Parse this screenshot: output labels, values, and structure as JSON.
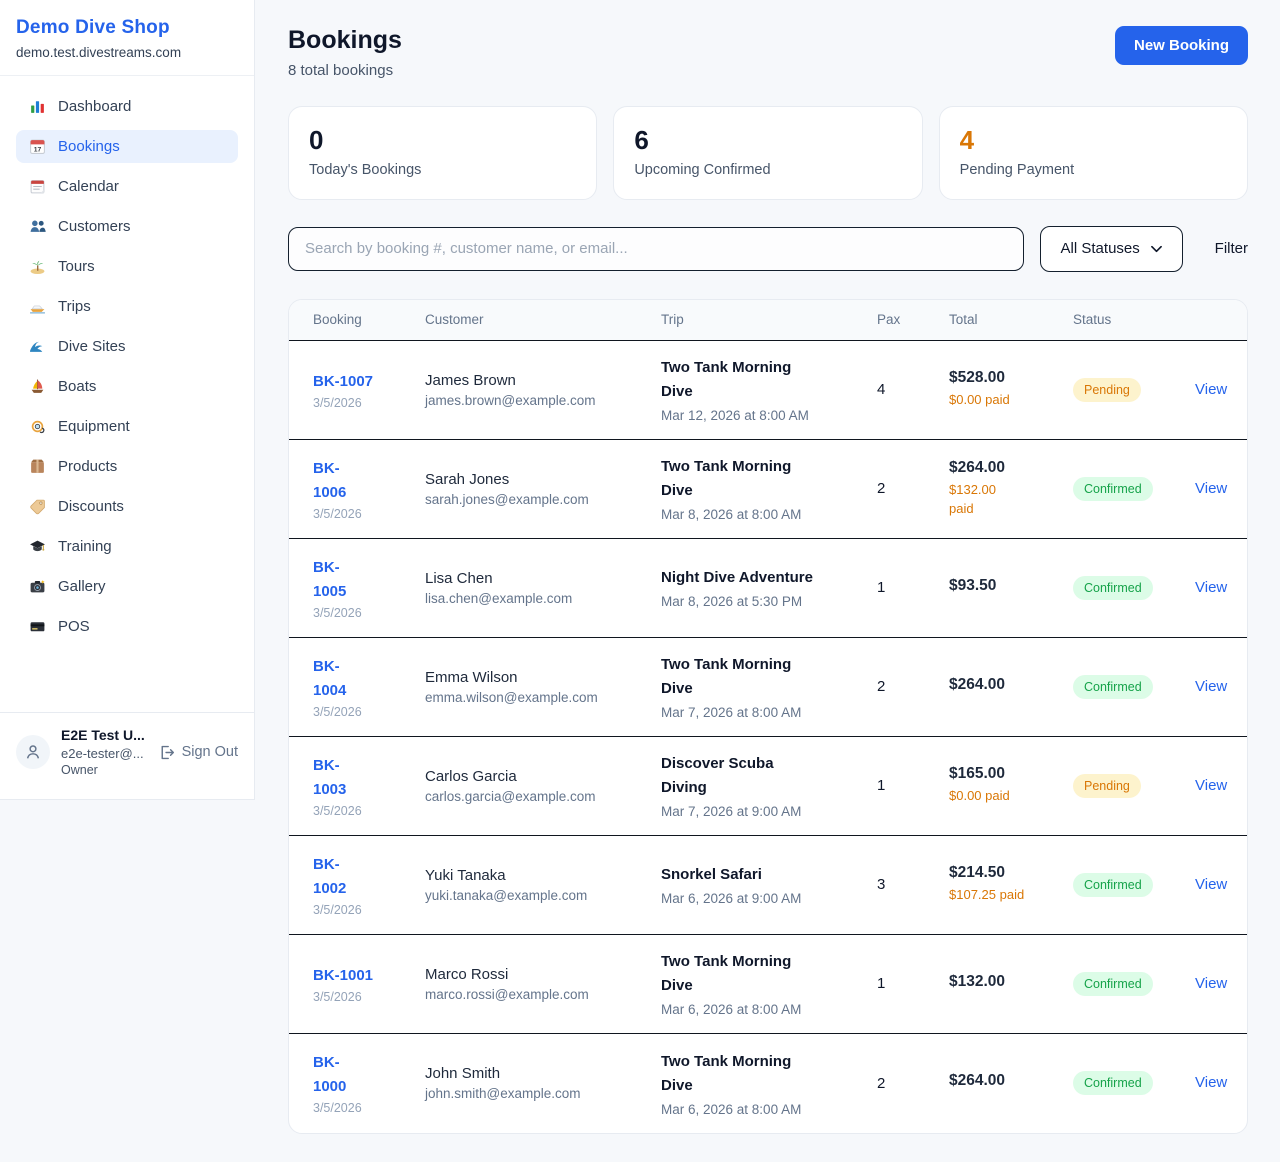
{
  "colors": {
    "accent": "#2563eb",
    "pending": "#d97706",
    "confirmed": "#16a34a",
    "stat_alert": "#d97706"
  },
  "sidebar": {
    "brand": {
      "name": "Demo Dive Shop",
      "domain": "demo.test.divestreams.com"
    },
    "nav": [
      {
        "icon": "bar-chart",
        "label": "Dashboard",
        "active": false
      },
      {
        "icon": "calendar-date",
        "label": "Bookings",
        "active": true
      },
      {
        "icon": "calendar",
        "label": "Calendar",
        "active": false
      },
      {
        "icon": "users",
        "label": "Customers",
        "active": false
      },
      {
        "icon": "island",
        "label": "Tours",
        "active": false
      },
      {
        "icon": "speedboat",
        "label": "Trips",
        "active": false
      },
      {
        "icon": "wave",
        "label": "Dive Sites",
        "active": false
      },
      {
        "icon": "sailboat",
        "label": "Boats",
        "active": false
      },
      {
        "icon": "dive-mask",
        "label": "Equipment",
        "active": false
      },
      {
        "icon": "package",
        "label": "Products",
        "active": false
      },
      {
        "icon": "tag",
        "label": "Discounts",
        "active": false
      },
      {
        "icon": "graduation-cap",
        "label": "Training",
        "active": false
      },
      {
        "icon": "camera",
        "label": "Gallery",
        "active": false
      },
      {
        "icon": "credit-card",
        "label": "POS",
        "active": false
      }
    ],
    "user": {
      "name": "E2E Test U...",
      "email": "e2e-tester@...",
      "role": "Owner",
      "sign_out_label": "Sign Out"
    }
  },
  "header": {
    "title": "Bookings",
    "subtitle": "8 total bookings",
    "new_booking_label": "New Booking"
  },
  "stats": [
    {
      "value": "0",
      "label": "Today's Bookings",
      "alert": false
    },
    {
      "value": "6",
      "label": "Upcoming Confirmed",
      "alert": false
    },
    {
      "value": "4",
      "label": "Pending Payment",
      "alert": true
    }
  ],
  "filters": {
    "search_placeholder": "Search by booking #, customer name, or email...",
    "status_selected": "All Statuses",
    "filter_label": "Filter"
  },
  "table": {
    "headers": {
      "booking": "Booking",
      "customer": "Customer",
      "trip": "Trip",
      "pax": "Pax",
      "total": "Total",
      "status": "Status"
    },
    "view_label": "View",
    "rows": [
      {
        "id_lines": [
          "BK-1007"
        ],
        "date": "3/5/2026",
        "customer_name": "James Brown",
        "customer_email": "james.brown@example.com",
        "trip_lines": [
          "Two Tank Morning",
          "Dive"
        ],
        "trip_datetime": "Mar 12, 2026 at 8:00 AM",
        "pax": "4",
        "total": "$528.00",
        "paid_lines": [
          "$0.00 paid"
        ],
        "status": "Pending",
        "status_type": "pending"
      },
      {
        "id_lines": [
          "BK-",
          "1006"
        ],
        "date": "3/5/2026",
        "customer_name": "Sarah Jones",
        "customer_email": "sarah.jones@example.com",
        "trip_lines": [
          "Two Tank Morning",
          "Dive"
        ],
        "trip_datetime": "Mar 8, 2026 at 8:00 AM",
        "pax": "2",
        "total": "$264.00",
        "paid_lines": [
          "$132.00",
          "paid"
        ],
        "status": "Confirmed",
        "status_type": "confirmed"
      },
      {
        "id_lines": [
          "BK-",
          "1005"
        ],
        "date": "3/5/2026",
        "customer_name": "Lisa Chen",
        "customer_email": "lisa.chen@example.com",
        "trip_lines": [
          "Night Dive Adventure"
        ],
        "trip_datetime": "Mar 8, 2026 at 5:30 PM",
        "pax": "1",
        "total": "$93.50",
        "paid_lines": [],
        "status": "Confirmed",
        "status_type": "confirmed"
      },
      {
        "id_lines": [
          "BK-",
          "1004"
        ],
        "date": "3/5/2026",
        "customer_name": "Emma Wilson",
        "customer_email": "emma.wilson@example.com",
        "trip_lines": [
          "Two Tank Morning",
          "Dive"
        ],
        "trip_datetime": "Mar 7, 2026 at 8:00 AM",
        "pax": "2",
        "total": "$264.00",
        "paid_lines": [],
        "status": "Confirmed",
        "status_type": "confirmed"
      },
      {
        "id_lines": [
          "BK-",
          "1003"
        ],
        "date": "3/5/2026",
        "customer_name": "Carlos Garcia",
        "customer_email": "carlos.garcia@example.com",
        "trip_lines": [
          "Discover Scuba",
          "Diving"
        ],
        "trip_datetime": "Mar 7, 2026 at 9:00 AM",
        "pax": "1",
        "total": "$165.00",
        "paid_lines": [
          "$0.00 paid"
        ],
        "status": "Pending",
        "status_type": "pending"
      },
      {
        "id_lines": [
          "BK-",
          "1002"
        ],
        "date": "3/5/2026",
        "customer_name": "Yuki Tanaka",
        "customer_email": "yuki.tanaka@example.com",
        "trip_lines": [
          "Snorkel Safari"
        ],
        "trip_datetime": "Mar 6, 2026 at 9:00 AM",
        "pax": "3",
        "total": "$214.50",
        "paid_lines": [
          "$107.25 paid"
        ],
        "status": "Confirmed",
        "status_type": "confirmed"
      },
      {
        "id_lines": [
          "BK-1001"
        ],
        "date": "3/5/2026",
        "customer_name": "Marco Rossi",
        "customer_email": "marco.rossi@example.com",
        "trip_lines": [
          "Two Tank Morning",
          "Dive"
        ],
        "trip_datetime": "Mar 6, 2026 at 8:00 AM",
        "pax": "1",
        "total": "$132.00",
        "paid_lines": [],
        "status": "Confirmed",
        "status_type": "confirmed"
      },
      {
        "id_lines": [
          "BK-",
          "1000"
        ],
        "date": "3/5/2026",
        "customer_name": "John Smith",
        "customer_email": "john.smith@example.com",
        "trip_lines": [
          "Two Tank Morning",
          "Dive"
        ],
        "trip_datetime": "Mar 6, 2026 at 8:00 AM",
        "pax": "2",
        "total": "$264.00",
        "paid_lines": [],
        "status": "Confirmed",
        "status_type": "confirmed"
      }
    ]
  }
}
